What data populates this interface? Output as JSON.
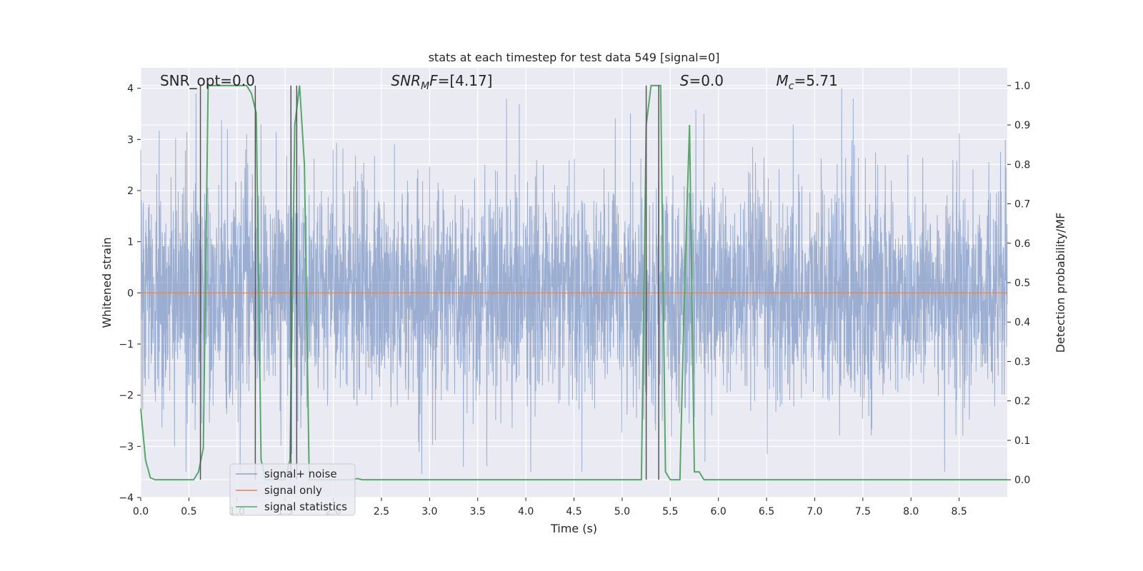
{
  "chart_data": {
    "type": "line",
    "title": "stats at each timestep for test data 549 [signal=0]",
    "xlabel": "Time (s)",
    "ylabel": "Whitened strain",
    "y2label": "Detection probability/MF",
    "xlim": [
      0,
      9
    ],
    "ylim": [
      -4,
      4.4
    ],
    "y2lim": [
      -0.045,
      1.045
    ],
    "xticks": [
      0,
      0.5,
      1,
      1.5,
      2,
      2.5,
      3,
      3.5,
      4,
      4.5,
      5,
      5.5,
      6,
      6.5,
      7,
      7.5,
      8,
      8.5
    ],
    "xtick_labels": [
      "0.0",
      "0.5",
      "1.0",
      "1.5",
      "2.0",
      "2.5",
      "3.0",
      "3.5",
      "4.0",
      "4.5",
      "5.0",
      "5.5",
      "6.0",
      "6.5",
      "7.0",
      "7.5",
      "8.0",
      "8.5"
    ],
    "yticks": [
      -4,
      -3,
      -2,
      -1,
      0,
      1,
      2,
      3,
      4
    ],
    "ytick_labels": [
      "−4",
      "−3",
      "−2",
      "−1",
      "0",
      "1",
      "2",
      "3",
      "4"
    ],
    "y2ticks": [
      0,
      0.1,
      0.2,
      0.3,
      0.4,
      0.5,
      0.6,
      0.7,
      0.8,
      0.9,
      1.0
    ],
    "y2tick_labels": [
      "0.0",
      "0.1",
      "0.2",
      "0.3",
      "0.4",
      "0.5",
      "0.6",
      "0.7",
      "0.8",
      "0.9",
      "1.0"
    ],
    "grid": true,
    "legend_placement": "lower-left",
    "annotations": [
      {
        "text": "SNR_opt=0.0",
        "x": 0.2
      },
      {
        "text_html": "SNR<tspan font-style='italic'>MF</tspan>",
        "text": "SNR_MF=[4.17]",
        "x": 2.6
      },
      {
        "text": "S=0.0",
        "x": 5.6
      },
      {
        "text": "Mc=5.71",
        "x": 6.6
      }
    ],
    "series": [
      {
        "name": "signal+ noise",
        "axis": "left",
        "color": "#4c72b0",
        "description_points": "dense noise trace spanning roughly -3.7 to 4.0 around zero",
        "noise_amplitude": 1.0,
        "peaks": [
          {
            "x": 0.0,
            "y": 2.8
          },
          {
            "x": 0.35,
            "y": -3.0
          },
          {
            "x": 0.47,
            "y": -3.5
          },
          {
            "x": 0.9,
            "y": 3.2
          },
          {
            "x": 1.1,
            "y": 3.1
          },
          {
            "x": 1.25,
            "y": 3.3
          },
          {
            "x": 3.35,
            "y": -3.4
          },
          {
            "x": 3.8,
            "y": 3.8
          },
          {
            "x": 4.05,
            "y": -3.5
          },
          {
            "x": 5.85,
            "y": 3.5
          },
          {
            "x": 7.28,
            "y": 4.0
          },
          {
            "x": 7.4,
            "y": 3.8
          },
          {
            "x": 8.35,
            "y": -3.5
          },
          {
            "x": 8.98,
            "y": 3.0
          }
        ]
      },
      {
        "name": "signal only",
        "axis": "left",
        "color": "#dd8452",
        "x": [
          0,
          9
        ],
        "y": [
          0,
          0
        ]
      },
      {
        "name": "signal statistics",
        "axis": "right",
        "color": "#55a868",
        "x": [
          0.0,
          0.05,
          0.1,
          0.15,
          0.55,
          0.6,
          0.65,
          0.7,
          1.1,
          1.15,
          1.2,
          1.25,
          1.3,
          1.5,
          1.55,
          1.6,
          1.65,
          1.7,
          1.75,
          2.2,
          2.25,
          2.3,
          5.2,
          5.25,
          5.3,
          5.35,
          5.4,
          5.45,
          5.5,
          5.6,
          5.65,
          5.7,
          5.75,
          5.8,
          5.85,
          5.9,
          9.0
        ],
        "y": [
          0.18,
          0.05,
          0.005,
          0.0,
          0.0,
          0.02,
          0.08,
          1.0,
          1.0,
          0.98,
          0.93,
          0.05,
          0.0,
          0.0,
          0.05,
          0.9,
          1.0,
          0.8,
          0.0,
          0.0,
          0.003,
          0.0,
          0.0,
          0.9,
          1.0,
          1.0,
          1.0,
          0.02,
          0.0,
          0.0,
          0.5,
          0.9,
          0.02,
          0.02,
          0.0,
          0.0,
          0.0
        ]
      }
    ],
    "vertical_lines": [
      0.62,
      1.19,
      1.56,
      1.62,
      5.25,
      5.38
    ]
  }
}
